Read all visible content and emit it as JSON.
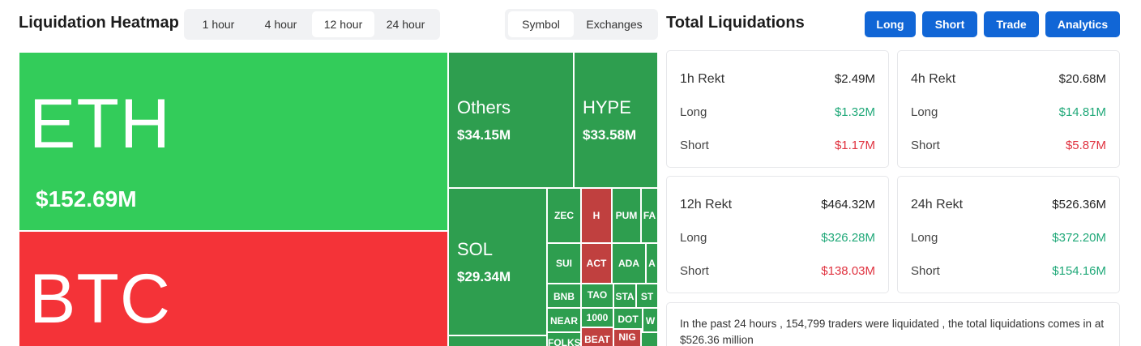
{
  "header": {
    "heatmap_title": "Liquidation Heatmap",
    "totals_title": "Total Liquidations"
  },
  "timeframes": [
    "1 hour",
    "4 hour",
    "12 hour",
    "24 hour"
  ],
  "timeframe_selected": "12 hour",
  "view_toggle": [
    "Symbol",
    "Exchanges"
  ],
  "view_selected": "Symbol",
  "buttons": {
    "long": "Long",
    "short": "Short",
    "trade": "Trade",
    "analytics": "Analytics"
  },
  "colors": {
    "accent": "#1166d6",
    "long_green": "#33cc5a",
    "short_red": "#f43338",
    "tile_green": "#2e9e4f",
    "tile_red": "#c0403f"
  },
  "treemap": {
    "eth": {
      "symbol": "ETH",
      "value": "$152.69M"
    },
    "btc": {
      "symbol": "BTC"
    },
    "others": {
      "symbol": "Others",
      "value": "$34.15M"
    },
    "hype": {
      "symbol": "HYPE",
      "value": "$33.58M"
    },
    "sol": {
      "symbol": "SOL",
      "value": "$29.34M"
    },
    "small": {
      "zec": "ZEC",
      "h": "H",
      "pum": "PUM",
      "fa": "FA",
      "sui": "SUI",
      "act": "ACT",
      "ada": "ADA",
      "a": "A",
      "bnb": "BNB",
      "tao": "TAO",
      "sta": "STA",
      "st": "ST",
      "near": "NEAR",
      "k1000": "1000",
      "dot": "DOT",
      "w": "W",
      "folks": "FOLKS",
      "beat": "BEAT",
      "nig": "NIG"
    }
  },
  "cards": {
    "h1": {
      "label": "1h Rekt",
      "total": "$2.49M",
      "long_label": "Long",
      "long": "$1.32M",
      "short_label": "Short",
      "short": "$1.17M"
    },
    "h4": {
      "label": "4h Rekt",
      "total": "$20.68M",
      "long_label": "Long",
      "long": "$14.81M",
      "short_label": "Short",
      "short": "$5.87M"
    },
    "h12": {
      "label": "12h Rekt",
      "total": "$464.32M",
      "long_label": "Long",
      "long": "$326.28M",
      "short_label": "Short",
      "short": "$138.03M"
    },
    "h24": {
      "label": "24h Rekt",
      "total": "$526.36M",
      "long_label": "Long",
      "long": "$372.20M",
      "short_label": "Short",
      "short": "$154.16M"
    }
  },
  "summary": "In the past 24 hours , 154,799 traders were liquidated , the total liquidations comes in at $526.36 million"
}
